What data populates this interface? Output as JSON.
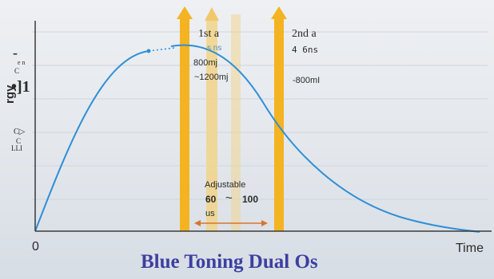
{
  "diagram": {
    "title": "Blue Toning Dual Os",
    "x_axis": {
      "origin": "0",
      "label": "Time"
    },
    "y_axis": {
      "label_glyphs": [
        "-",
        "e n",
        "C",
        "•]1",
        "rgy",
        "C▷",
        "C",
        "LLI"
      ]
    },
    "pulse1": {
      "title": "1st a",
      "sub": "s ns",
      "energy1": "800mj",
      "energy2": "~1200mj"
    },
    "pulse2": {
      "title": "2nd a",
      "duration": "4 6ns",
      "energy": "-800mI"
    },
    "interval": {
      "label": "Adjustable",
      "range_low": "60",
      "range_sep": "~",
      "range_high": "100",
      "unit": "us"
    },
    "colors": {
      "curve": "#2f8fd6",
      "pulse": "#f4b321",
      "faint_pulse": "#f1d38a",
      "arrow": "#d9752c",
      "title": "#3d3fa0"
    }
  }
}
